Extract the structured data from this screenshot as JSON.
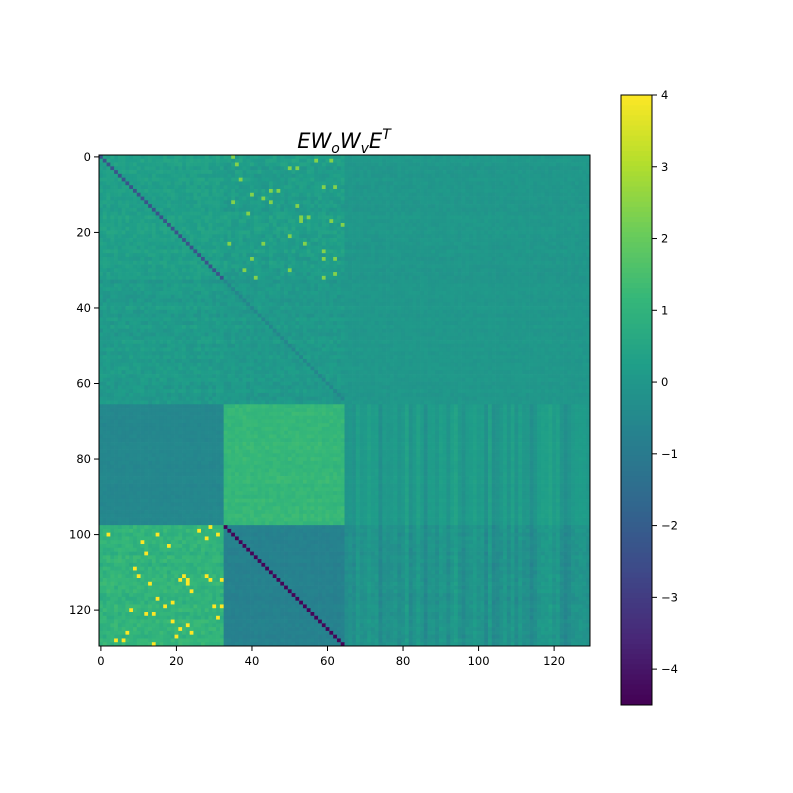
{
  "chart_data": {
    "type": "heatmap",
    "title": {
      "base": "EW",
      "sub_o": "o",
      "mid": "W",
      "sub_v": "v",
      "end": "E",
      "sup": "T"
    },
    "xlabel": "",
    "ylabel": "",
    "matrix_size": 130,
    "xlim": [
      0,
      130
    ],
    "ylim": [
      130,
      0
    ],
    "x_ticks": [
      0,
      20,
      40,
      60,
      80,
      100,
      120
    ],
    "y_ticks": [
      0,
      20,
      40,
      60,
      80,
      100,
      120
    ],
    "colormap": "viridis",
    "colorbar": {
      "min": -4.5,
      "max": 4,
      "ticks": [
        4,
        3,
        2,
        1,
        0,
        -1,
        -2,
        -3,
        -4
      ],
      "tick_labels": [
        "4",
        "3",
        "2",
        "1",
        "0",
        "−1",
        "−2",
        "−3",
        "−4"
      ]
    },
    "block_boundaries": [
      33,
      66,
      98,
      130
    ],
    "blocks": [
      {
        "rows": [
          0,
          33
        ],
        "cols": [
          0,
          33
        ],
        "mean": 0.3,
        "noise": 0.2,
        "diagonal": -2.3
      },
      {
        "rows": [
          0,
          33
        ],
        "cols": [
          33,
          65
        ],
        "mean": 0.2,
        "noise": 0.25,
        "sparse_high": 2.4
      },
      {
        "rows": [
          0,
          33
        ],
        "cols": [
          65,
          130
        ],
        "mean": 0.0,
        "noise": 0.12
      },
      {
        "rows": [
          33,
          66
        ],
        "cols": [
          0,
          33
        ],
        "mean": 0.1,
        "noise": 0.22
      },
      {
        "rows": [
          33,
          66
        ],
        "cols": [
          33,
          65
        ],
        "mean": 0.05,
        "noise": 0.2,
        "diagonal": -0.6
      },
      {
        "rows": [
          33,
          66
        ],
        "cols": [
          65,
          130
        ],
        "mean": 0.0,
        "noise": 0.1
      },
      {
        "rows": [
          66,
          98
        ],
        "cols": [
          0,
          33
        ],
        "mean": -0.55,
        "noise": 0.08
      },
      {
        "rows": [
          66,
          98
        ],
        "cols": [
          33,
          65
        ],
        "mean": 1.15,
        "noise": 0.15
      },
      {
        "rows": [
          66,
          98
        ],
        "cols": [
          65,
          130
        ],
        "mean": 0.05,
        "noise": 0.06,
        "column_stripes": 0.35
      },
      {
        "rows": [
          98,
          130
        ],
        "cols": [
          0,
          33
        ],
        "mean": 1.0,
        "noise": 0.25,
        "sparse_high": 4.0
      },
      {
        "rows": [
          98,
          130
        ],
        "cols": [
          33,
          65
        ],
        "mean": -0.75,
        "noise": 0.1,
        "diagonal": -4.4
      },
      {
        "rows": [
          98,
          130
        ],
        "cols": [
          65,
          130
        ],
        "mean": -0.2,
        "noise": 0.15,
        "column_stripes": 0.35
      }
    ]
  }
}
